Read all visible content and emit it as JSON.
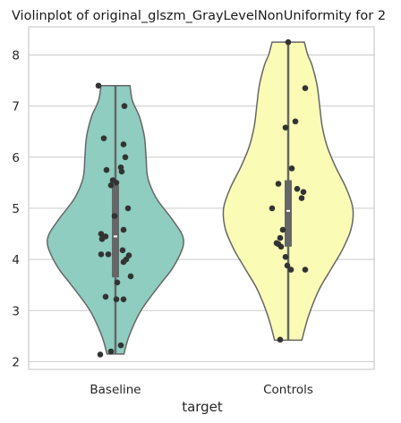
{
  "chart_data": {
    "type": "violin",
    "title": "Violinplot of original_glszm_GrayLevelNonUniformity for 2",
    "xlabel": "target",
    "ylabel": "",
    "ylim": [
      1.85,
      8.55
    ],
    "yticks": [
      2,
      3,
      4,
      5,
      6,
      7,
      8
    ],
    "grid": true,
    "categories": [
      "Baseline",
      "Controls"
    ],
    "colors": [
      "#8ecdc0",
      "#fafcb5"
    ],
    "groups": [
      {
        "name": "Baseline",
        "min": 2.15,
        "max": 7.4,
        "q1": 3.65,
        "median": 4.45,
        "q3": 5.45,
        "density": [
          [
            2.15,
            0.1
          ],
          [
            2.5,
            0.16
          ],
          [
            3.0,
            0.3
          ],
          [
            3.5,
            0.52
          ],
          [
            3.8,
            0.66
          ],
          [
            4.1,
            0.76
          ],
          [
            4.3,
            0.8
          ],
          [
            4.5,
            0.78
          ],
          [
            4.8,
            0.66
          ],
          [
            5.2,
            0.48
          ],
          [
            5.6,
            0.38
          ],
          [
            6.0,
            0.36
          ],
          [
            6.4,
            0.34
          ],
          [
            6.8,
            0.28
          ],
          [
            7.1,
            0.2
          ],
          [
            7.4,
            0.17
          ]
        ],
        "points": [
          {
            "v": 7.4,
            "j": -0.19
          },
          {
            "v": 7.0,
            "j": 0.1
          },
          {
            "v": 6.37,
            "j": -0.13
          },
          {
            "v": 6.25,
            "j": 0.09
          },
          {
            "v": 6.0,
            "j": 0.11
          },
          {
            "v": 5.8,
            "j": 0.06
          },
          {
            "v": 5.75,
            "j": -0.1
          },
          {
            "v": 5.72,
            "j": 0.07
          },
          {
            "v": 5.55,
            "j": -0.03
          },
          {
            "v": 5.5,
            "j": 0.01
          },
          {
            "v": 5.45,
            "j": -0.05
          },
          {
            "v": 5.0,
            "j": 0.14
          },
          {
            "v": 4.85,
            "j": -0.01
          },
          {
            "v": 4.58,
            "j": 0.09
          },
          {
            "v": 4.5,
            "j": -0.16
          },
          {
            "v": 4.45,
            "j": -0.14
          },
          {
            "v": 4.45,
            "j": -0.11
          },
          {
            "v": 4.4,
            "j": -0.15
          },
          {
            "v": 4.18,
            "j": 0.08
          },
          {
            "v": 4.1,
            "j": -0.16
          },
          {
            "v": 4.1,
            "j": -0.08
          },
          {
            "v": 4.08,
            "j": 0.15
          },
          {
            "v": 4.0,
            "j": 0.12
          },
          {
            "v": 3.95,
            "j": 0.09
          },
          {
            "v": 3.67,
            "j": 0.17
          },
          {
            "v": 3.55,
            "j": 0.02
          },
          {
            "v": 3.27,
            "j": -0.11
          },
          {
            "v": 3.22,
            "j": 0.01
          },
          {
            "v": 3.22,
            "j": 0.09
          },
          {
            "v": 2.32,
            "j": 0.06
          },
          {
            "v": 2.2,
            "j": -0.05
          },
          {
            "v": 2.14,
            "j": -0.17
          }
        ]
      },
      {
        "name": "Controls",
        "min": 2.42,
        "max": 8.25,
        "q1": 4.25,
        "median": 4.95,
        "q3": 5.55,
        "density": [
          [
            2.42,
            0.16
          ],
          [
            2.9,
            0.24
          ],
          [
            3.4,
            0.36
          ],
          [
            3.8,
            0.5
          ],
          [
            4.2,
            0.64
          ],
          [
            4.6,
            0.74
          ],
          [
            5.0,
            0.76
          ],
          [
            5.4,
            0.68
          ],
          [
            5.8,
            0.56
          ],
          [
            6.2,
            0.46
          ],
          [
            6.6,
            0.4
          ],
          [
            7.0,
            0.37
          ],
          [
            7.4,
            0.34
          ],
          [
            7.8,
            0.28
          ],
          [
            8.0,
            0.23
          ],
          [
            8.25,
            0.19
          ]
        ],
        "points": [
          {
            "v": 8.25,
            "j": 0.0
          },
          {
            "v": 7.35,
            "j": 0.19
          },
          {
            "v": 6.7,
            "j": 0.08
          },
          {
            "v": 6.58,
            "j": -0.03
          },
          {
            "v": 5.78,
            "j": 0.04
          },
          {
            "v": 5.48,
            "j": -0.11
          },
          {
            "v": 5.38,
            "j": 0.1
          },
          {
            "v": 5.32,
            "j": 0.17
          },
          {
            "v": 5.2,
            "j": 0.15
          },
          {
            "v": 5.0,
            "j": -0.18
          },
          {
            "v": 4.58,
            "j": -0.06
          },
          {
            "v": 4.42,
            "j": -0.09
          },
          {
            "v": 4.32,
            "j": -0.13
          },
          {
            "v": 4.3,
            "j": -0.11
          },
          {
            "v": 4.25,
            "j": -0.08
          },
          {
            "v": 4.05,
            "j": -0.03
          },
          {
            "v": 3.88,
            "j": -0.01
          },
          {
            "v": 3.8,
            "j": 0.03
          },
          {
            "v": 3.8,
            "j": 0.19
          },
          {
            "v": 2.43,
            "j": -0.09
          }
        ]
      }
    ]
  }
}
